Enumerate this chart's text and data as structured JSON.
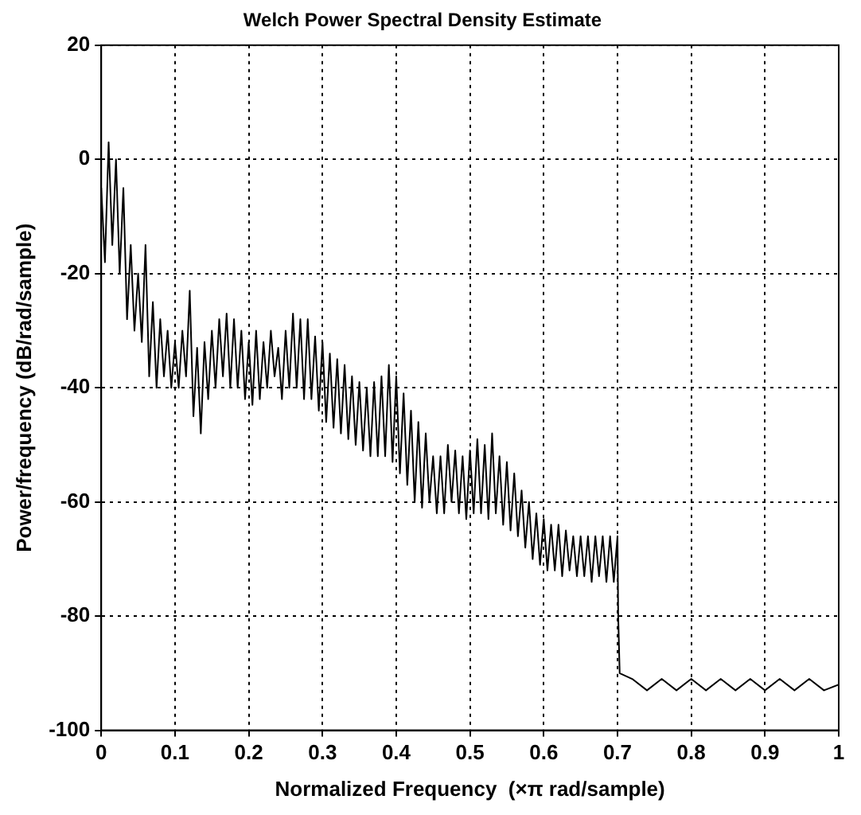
{
  "chart_data": {
    "type": "line",
    "title": "Welch Power Spectral Density Estimate",
    "xlabel": "Normalized Frequency  (×π rad/sample)",
    "ylabel": "Power/frequency (dB/rad/sample)",
    "xlim": [
      0,
      1
    ],
    "xticks": [
      0,
      0.1,
      0.2,
      0.3,
      0.4,
      0.5,
      0.6,
      0.7,
      0.8,
      0.9,
      1
    ],
    "ylim": [
      -100,
      20
    ],
    "yticks": [
      -100,
      -80,
      -60,
      -40,
      -20,
      0,
      20
    ],
    "grid": true,
    "legend": false,
    "marker": "none",
    "line_style": "solid",
    "series": [
      {
        "color": "#000000",
        "x": [
          0,
          0.005,
          0.01,
          0.015,
          0.02,
          0.025,
          0.03,
          0.035,
          0.04,
          0.045,
          0.05,
          0.055,
          0.06,
          0.065,
          0.07,
          0.075,
          0.08,
          0.085,
          0.09,
          0.095,
          0.1,
          0.105,
          0.11,
          0.115,
          0.12,
          0.125,
          0.13,
          0.135,
          0.14,
          0.145,
          0.15,
          0.155,
          0.16,
          0.165,
          0.17,
          0.175,
          0.18,
          0.185,
          0.19,
          0.195,
          0.2,
          0.205,
          0.21,
          0.215,
          0.22,
          0.225,
          0.23,
          0.235,
          0.24,
          0.245,
          0.25,
          0.255,
          0.26,
          0.265,
          0.27,
          0.275,
          0.28,
          0.285,
          0.29,
          0.295,
          0.3,
          0.305,
          0.31,
          0.315,
          0.32,
          0.325,
          0.33,
          0.335,
          0.34,
          0.345,
          0.35,
          0.355,
          0.36,
          0.365,
          0.37,
          0.375,
          0.38,
          0.385,
          0.39,
          0.395,
          0.4,
          0.405,
          0.41,
          0.415,
          0.42,
          0.425,
          0.43,
          0.435,
          0.44,
          0.445,
          0.45,
          0.455,
          0.46,
          0.465,
          0.47,
          0.475,
          0.48,
          0.485,
          0.49,
          0.495,
          0.5,
          0.505,
          0.51,
          0.515,
          0.52,
          0.525,
          0.53,
          0.535,
          0.54,
          0.545,
          0.55,
          0.555,
          0.56,
          0.565,
          0.57,
          0.575,
          0.58,
          0.585,
          0.59,
          0.595,
          0.6,
          0.605,
          0.61,
          0.615,
          0.62,
          0.625,
          0.63,
          0.635,
          0.64,
          0.645,
          0.65,
          0.655,
          0.66,
          0.665,
          0.67,
          0.675,
          0.68,
          0.685,
          0.69,
          0.695,
          0.7,
          0.701,
          0.703,
          0.72,
          0.74,
          0.76,
          0.78,
          0.8,
          0.82,
          0.84,
          0.86,
          0.88,
          0.9,
          0.92,
          0.94,
          0.96,
          0.98,
          1
        ],
        "values": [
          -5,
          -18,
          3,
          -15,
          0,
          -20,
          -5,
          -28,
          -15,
          -30,
          -20,
          -32,
          -15,
          -38,
          -25,
          -40,
          -28,
          -38,
          -30,
          -40,
          -32,
          -40,
          -30,
          -38,
          -23,
          -45,
          -33,
          -48,
          -32,
          -42,
          -30,
          -40,
          -28,
          -38,
          -27,
          -40,
          -28,
          -40,
          -30,
          -42,
          -32,
          -43,
          -30,
          -42,
          -32,
          -40,
          -30,
          -38,
          -33,
          -42,
          -30,
          -40,
          -27,
          -40,
          -28,
          -42,
          -28,
          -42,
          -31,
          -44,
          -32,
          -46,
          -34,
          -47,
          -35,
          -48,
          -36,
          -49,
          -38,
          -50,
          -39,
          -51,
          -40,
          -52,
          -39,
          -52,
          -38,
          -52,
          -36,
          -53,
          -38,
          -55,
          -41,
          -57,
          -44,
          -60,
          -46,
          -61,
          -48,
          -60,
          -52,
          -62,
          -52,
          -62,
          -50,
          -60,
          -51,
          -62,
          -52,
          -63,
          -51,
          -62,
          -49,
          -62,
          -50,
          -63,
          -48,
          -62,
          -52,
          -64,
          -53,
          -65,
          -55,
          -66,
          -58,
          -68,
          -60,
          -70,
          -62,
          -71,
          -63,
          -72,
          -64,
          -72,
          -64,
          -73,
          -65,
          -72,
          -66,
          -73,
          -66,
          -73,
          -66,
          -74,
          -66,
          -73,
          -66,
          -74,
          -66,
          -74,
          -66,
          -80,
          -90,
          -91,
          -93,
          -91,
          -93,
          -91,
          -93,
          -91,
          -93,
          -91,
          -93,
          -91,
          -93,
          -91,
          -93,
          -92
        ]
      }
    ]
  }
}
